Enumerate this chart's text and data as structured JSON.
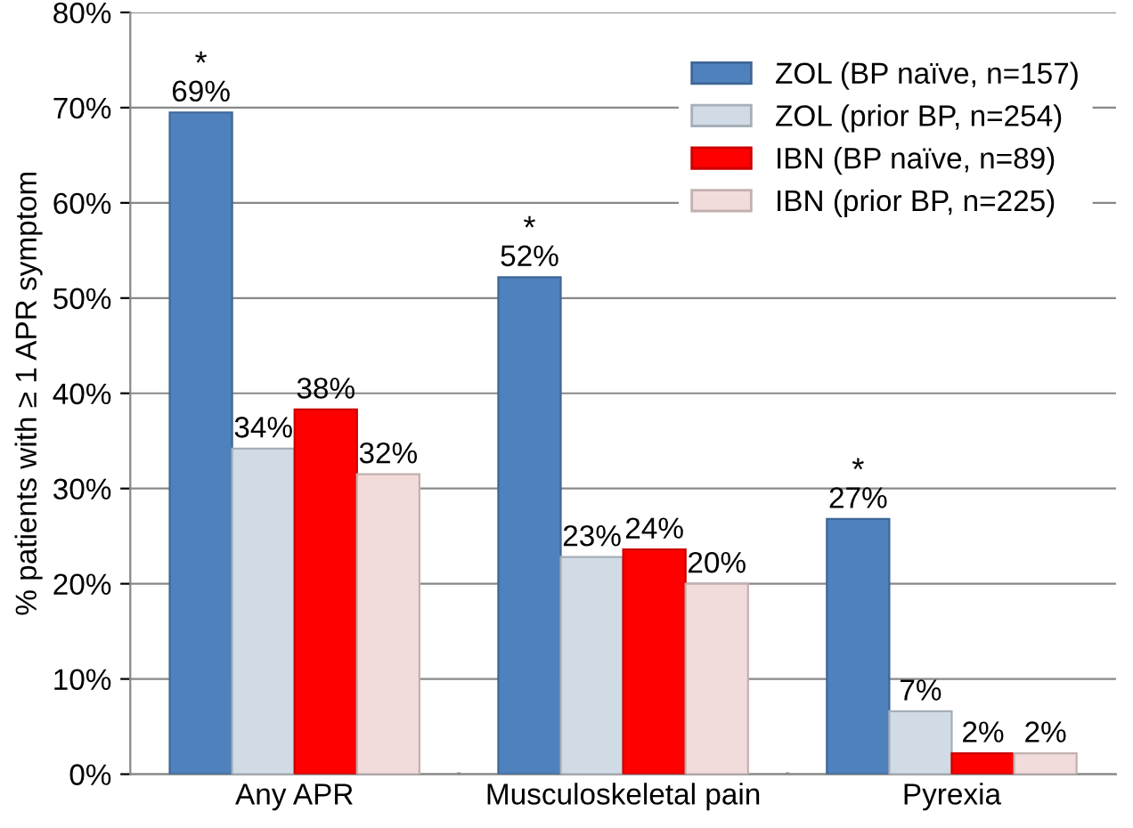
{
  "chart_data": {
    "type": "bar",
    "ylabel": "% patients with ≥ 1 APR symptom",
    "categories": [
      "Any APR",
      "Musculoskeletal pain",
      "Pyrexia"
    ],
    "series": [
      {
        "name": "ZOL (BP naïve, n=157)",
        "color": "#4f81bd",
        "values": [
          69.5,
          52.2,
          26.8
        ],
        "value_labels": [
          "69%",
          "52%",
          "27%"
        ]
      },
      {
        "name": "ZOL (prior BP, n=254)",
        "color": "#d0dbe6",
        "values": [
          34.2,
          22.8,
          6.6
        ],
        "value_labels": [
          "34%",
          "23%",
          "7%"
        ]
      },
      {
        "name": "IBN (BP naïve, n=89)",
        "color": "#ff0000",
        "values": [
          38.3,
          23.6,
          2.2
        ],
        "value_labels": [
          "38%",
          "24%",
          "2%"
        ]
      },
      {
        "name": "IBN (prior BP, n=225)",
        "color": "#f2dcdb",
        "values": [
          31.5,
          20.0,
          2.2
        ],
        "value_labels": [
          "32%",
          "20%",
          "2%"
        ]
      }
    ],
    "annotations": [
      "*",
      "*",
      "*"
    ],
    "ylim": [
      0,
      80
    ],
    "yticks": [
      {
        "value": 0,
        "label": "0%"
      },
      {
        "value": 10,
        "label": "10%"
      },
      {
        "value": 20,
        "label": "20%"
      },
      {
        "value": 30,
        "label": "30%"
      },
      {
        "value": 40,
        "label": "40%"
      },
      {
        "value": 50,
        "label": "50%"
      },
      {
        "value": 60,
        "label": "60%"
      },
      {
        "value": 70,
        "label": "70%"
      },
      {
        "value": 80,
        "label": "80%"
      }
    ],
    "grid": "y",
    "legend": "top right"
  }
}
